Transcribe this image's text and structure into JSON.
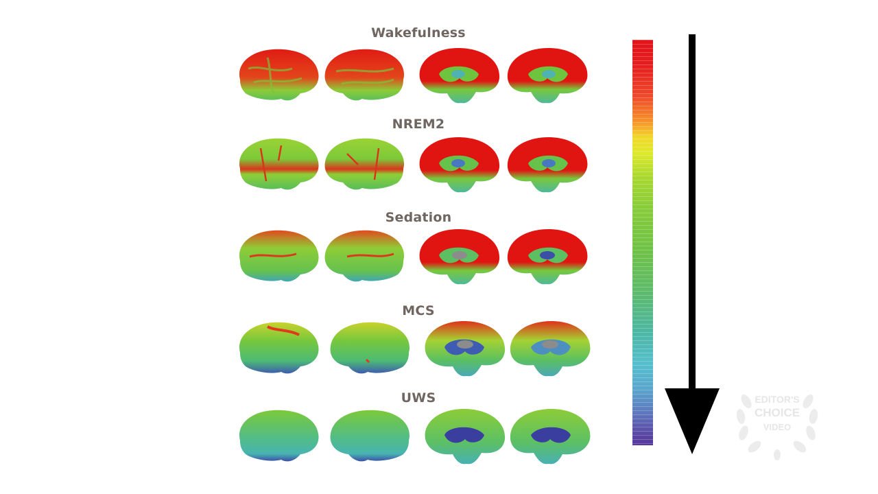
{
  "figure": {
    "rows": [
      {
        "label": "Wakefulness"
      },
      {
        "label": "NREM2"
      },
      {
        "label": "Sedation"
      },
      {
        "label": "MCS"
      },
      {
        "label": "UWS"
      }
    ]
  },
  "colorbar": {
    "top_color": "#e0141a",
    "bottom_color": "#55379a"
  },
  "arrow": {
    "direction": "down",
    "color": "#000000"
  },
  "badge": {
    "line1": "EDITOR'S",
    "line2": "CHOICE",
    "line3": "VIDEO",
    "color": "#e6e6e6"
  },
  "icons": [
    "brain-lateral-left-icon",
    "brain-lateral-right-icon",
    "brain-medial-left-icon",
    "brain-medial-right-icon",
    "down-arrow-icon",
    "laurel-badge-icon"
  ]
}
